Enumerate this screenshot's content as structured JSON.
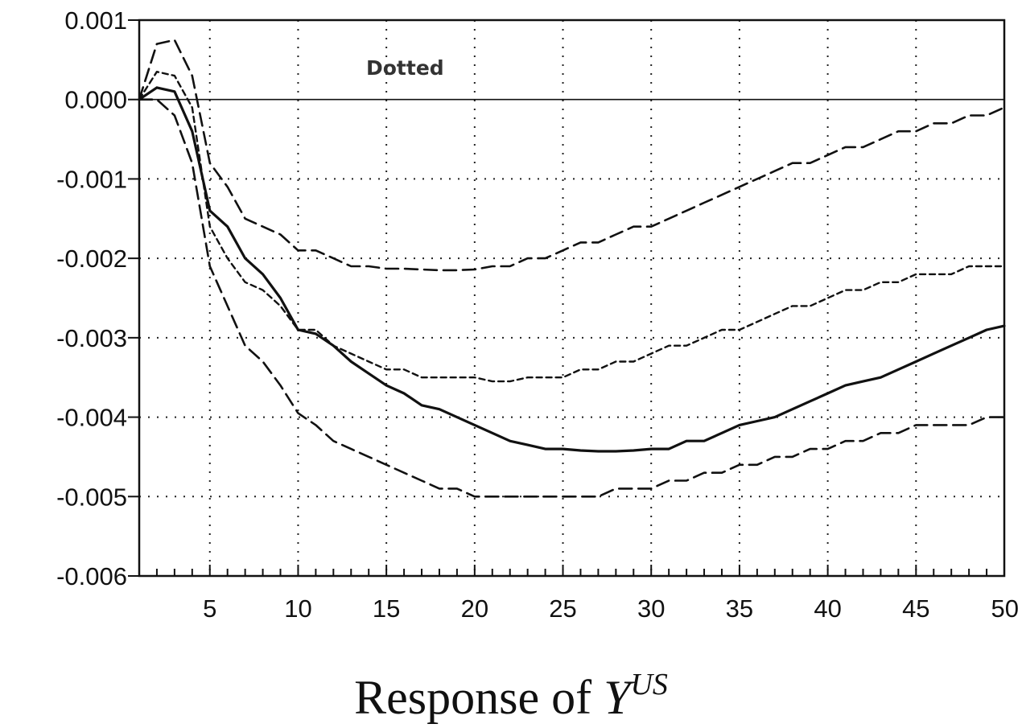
{
  "chart_data": {
    "type": "line",
    "title": "",
    "caption": {
      "prefix": "Response of ",
      "variable": "Y",
      "superscript": "US"
    },
    "annotation": "Dotted",
    "xlabel": "",
    "ylabel": "",
    "xlim": [
      1,
      50
    ],
    "ylim": [
      -0.006,
      0.001
    ],
    "x_ticks": [
      5,
      10,
      15,
      20,
      25,
      30,
      35,
      40,
      45,
      50
    ],
    "x_tick_labels": [
      "5",
      "10",
      "15",
      "20",
      "25",
      "30",
      "35",
      "40",
      "45",
      "50"
    ],
    "y_ticks": [
      0.001,
      0.0,
      -0.001,
      -0.002,
      -0.003,
      -0.004,
      -0.005,
      -0.006
    ],
    "y_tick_labels": [
      "0.001",
      "0.000",
      "-0.001",
      "-0.002",
      "-0.003",
      "-0.004",
      "-0.005",
      "-0.006"
    ],
    "grid": "dotted",
    "zero_line": true,
    "x": [
      1,
      2,
      3,
      4,
      5,
      6,
      7,
      8,
      9,
      10,
      11,
      12,
      13,
      14,
      15,
      16,
      17,
      18,
      19,
      20,
      21,
      22,
      23,
      24,
      25,
      26,
      27,
      28,
      29,
      30,
      31,
      32,
      33,
      34,
      35,
      36,
      37,
      38,
      39,
      40,
      41,
      42,
      43,
      44,
      45,
      46,
      47,
      48,
      49,
      50
    ],
    "series": [
      {
        "style": "solid",
        "values": [
          0.0,
          0.00015,
          0.0001,
          -0.0004,
          -0.0014,
          -0.0016,
          -0.002,
          -0.0022,
          -0.0025,
          -0.0029,
          -0.00295,
          -0.0031,
          -0.0033,
          -0.00345,
          -0.0036,
          -0.0037,
          -0.00385,
          -0.0039,
          -0.004,
          -0.0041,
          -0.0042,
          -0.0043,
          -0.00435,
          -0.0044,
          -0.0044,
          -0.00442,
          -0.00443,
          -0.00443,
          -0.00442,
          -0.0044,
          -0.0044,
          -0.0043,
          -0.0043,
          -0.0042,
          -0.0041,
          -0.00405,
          -0.004,
          -0.0039,
          -0.0038,
          -0.0037,
          -0.0036,
          -0.00355,
          -0.0035,
          -0.0034,
          -0.0033,
          -0.0032,
          -0.0031,
          -0.003,
          -0.0029,
          -0.00285
        ]
      },
      {
        "style": "long-dash",
        "values": [
          0.0,
          0.0007,
          0.00075,
          0.0003,
          -0.0008,
          -0.0011,
          -0.0015,
          -0.0016,
          -0.0017,
          -0.0019,
          -0.0019,
          -0.002,
          -0.0021,
          -0.0021,
          -0.00213,
          -0.00213,
          -0.00214,
          -0.00215,
          -0.00215,
          -0.00214,
          -0.0021,
          -0.0021,
          -0.002,
          -0.002,
          -0.0019,
          -0.0018,
          -0.0018,
          -0.0017,
          -0.0016,
          -0.0016,
          -0.0015,
          -0.0014,
          -0.0013,
          -0.0012,
          -0.0011,
          -0.001,
          -0.0009,
          -0.0008,
          -0.0008,
          -0.0007,
          -0.0006,
          -0.0006,
          -0.0005,
          -0.0004,
          -0.0004,
          -0.0003,
          -0.0003,
          -0.0002,
          -0.0002,
          -0.0001
        ]
      },
      {
        "style": "long-dash",
        "values": [
          0.0,
          0.0,
          -0.0002,
          -0.0008,
          -0.0021,
          -0.0026,
          -0.0031,
          -0.0033,
          -0.0036,
          -0.00395,
          -0.0041,
          -0.0043,
          -0.0044,
          -0.0045,
          -0.0046,
          -0.0047,
          -0.0048,
          -0.0049,
          -0.0049,
          -0.005,
          -0.005,
          -0.005,
          -0.005,
          -0.005,
          -0.005,
          -0.005,
          -0.005,
          -0.0049,
          -0.0049,
          -0.0049,
          -0.0048,
          -0.0048,
          -0.0047,
          -0.0047,
          -0.0046,
          -0.0046,
          -0.0045,
          -0.0045,
          -0.0044,
          -0.0044,
          -0.0043,
          -0.0043,
          -0.0042,
          -0.0042,
          -0.0041,
          -0.0041,
          -0.0041,
          -0.0041,
          -0.004,
          -0.004
        ]
      },
      {
        "style": "short-dash",
        "values": [
          0.0,
          0.00035,
          0.0003,
          -0.0001,
          -0.0016,
          -0.002,
          -0.0023,
          -0.0024,
          -0.0026,
          -0.0029,
          -0.0029,
          -0.0031,
          -0.0032,
          -0.0033,
          -0.0034,
          -0.0034,
          -0.0035,
          -0.0035,
          -0.0035,
          -0.0035,
          -0.00355,
          -0.00355,
          -0.0035,
          -0.0035,
          -0.0035,
          -0.0034,
          -0.0034,
          -0.0033,
          -0.0033,
          -0.0032,
          -0.0031,
          -0.0031,
          -0.003,
          -0.0029,
          -0.0029,
          -0.0028,
          -0.0027,
          -0.0026,
          -0.0026,
          -0.0025,
          -0.0024,
          -0.0024,
          -0.0023,
          -0.0023,
          -0.0022,
          -0.0022,
          -0.0022,
          -0.0021,
          -0.0021,
          -0.0021
        ]
      }
    ]
  }
}
